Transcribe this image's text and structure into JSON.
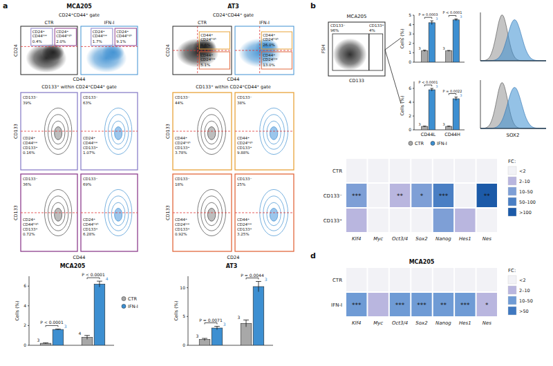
{
  "panel_labels": [
    "a",
    "b",
    "d"
  ],
  "flow_a": [
    {
      "sample": "MCA205",
      "header": "CD24⁺CD44⁺ gate",
      "x_label": "CD44",
      "y_label": "CD24",
      "plots": [
        {
          "condition": "CTR",
          "gates": [
            {
              "label": [
                "CD24⁺",
                "CD44ˡᵒʷ"
              ],
              "percent": "0.4%"
            },
            {
              "label": [
                "CD24⁺",
                "CD44ʰⁱᵍʰ"
              ],
              "percent": "2.0%"
            }
          ]
        },
        {
          "condition": "IFN-I",
          "gates": [
            {
              "label": [
                "CD24⁺",
                "CD44ˡᵒʷ"
              ],
              "percent": "1.7%"
            },
            {
              "label": [
                "CD24⁺",
                "CD44ʰⁱᵍʰ"
              ],
              "percent": "9.1%"
            }
          ]
        }
      ]
    },
    {
      "sample": "AT3",
      "header": "CD24⁺CD44⁺ gate",
      "x_label": "CD44",
      "y_label": "CD24",
      "plots": [
        {
          "condition": "CTR",
          "gates": [
            {
              "label": [
                "CD44⁺",
                "CD24ʰⁱᵍʰ"
              ],
              "percent": "8.6%"
            },
            {
              "label": [
                "CD44⁺",
                "CD24ˡᵒʷ"
              ],
              "percent": "5.1%"
            }
          ]
        },
        {
          "condition": "IFN-I",
          "gates": [
            {
              "label": [
                "CD44⁺",
                "CD24ʰⁱᵍʰ"
              ],
              "percent": "26.0%"
            },
            {
              "label": [
                "CD44⁺",
                "CD24ˡᵒʷ"
              ],
              "percent": "13.0%"
            }
          ]
        }
      ]
    }
  ],
  "contour_a": {
    "top_label": "CD133⁻",
    "y_label": "CD133",
    "blocks": [
      {
        "header": "CD133⁺ within CD24⁺CD44⁺ gate",
        "x_label": "CD44",
        "rows": [
          {
            "gate": [
              "CD24⁺",
              "CD44ˡᵒʷ",
              "CD133⁺"
            ],
            "cells": [
              {
                "top": "39%",
                "bottom": "0.16%"
              },
              {
                "top": "63%",
                "bottom": "1.07%"
              }
            ]
          },
          {
            "gate": [
              "CD24⁺",
              "CD44ʰⁱᵍʰ",
              "CD133⁺"
            ],
            "cells": [
              {
                "top": "36%",
                "bottom": "0.72%"
              },
              {
                "top": "69%",
                "bottom": "6.28%"
              }
            ]
          }
        ]
      },
      {
        "header": "CD133⁺ within CD24⁺CD44⁺ gate",
        "x_label": "CD24",
        "rows": [
          {
            "gate": [
              "CD44⁺",
              "CD24ʰⁱᵍʰ",
              "CD133⁺"
            ],
            "cells": [
              {
                "top": "44%",
                "bottom": "3.78%"
              },
              {
                "top": "38%",
                "bottom": "9.88%"
              }
            ]
          },
          {
            "gate": [
              "CD44⁺",
              "CD24ˡᵒʷ",
              "CD133⁺"
            ],
            "cells": [
              {
                "top": "18%",
                "bottom": "0.92%"
              },
              {
                "top": "25%",
                "bottom": "3.25%"
              }
            ]
          }
        ]
      }
    ]
  },
  "scatter_b": {
    "title": "MCA205",
    "x_label": "CD133",
    "y_label": "FSH",
    "gates": [
      {
        "label": "CD133⁻",
        "percent": "96%"
      },
      {
        "label": "CD133⁺",
        "percent": "4%"
      }
    ]
  },
  "histograms_b": {
    "x_label": "SOX2"
  },
  "chart_data": [
    {
      "type": "bar",
      "title": "MCA205",
      "categories": [
        null,
        null
      ],
      "y_label": "Cells (%)",
      "series": [
        {
          "name": "CTR",
          "color": "#a8a8a8",
          "values": [
            0.2,
            0.8
          ],
          "errors": [
            0.05,
            0.2
          ],
          "n": [
            3,
            4
          ]
        },
        {
          "name": "IFN-I",
          "color": "#3d8fd1",
          "values": [
            1.6,
            6.2
          ],
          "errors": [
            0.05,
            0.3
          ],
          "n": [
            3,
            4
          ]
        }
      ],
      "ylim": [
        0,
        7
      ],
      "yticks": [
        0,
        2,
        4,
        6
      ],
      "p_values": [
        "P < 0.0001",
        "P < 0.0001"
      ],
      "legend": "right"
    },
    {
      "type": "bar",
      "title": "AT3",
      "categories": [
        null,
        null
      ],
      "y_label": "Cells (%)",
      "series": [
        {
          "name": "CTR",
          "color": "#a8a8a8",
          "values": [
            1.0,
            3.8
          ],
          "errors": [
            0.2,
            0.6
          ],
          "n": [
            3,
            3
          ]
        },
        {
          "name": "IFN-I",
          "color": "#3d8fd1",
          "values": [
            3.0,
            10.2
          ],
          "errors": [
            0.3,
            0.9
          ],
          "n": [
            3,
            3
          ]
        }
      ],
      "ylim": [
        0,
        12
      ],
      "yticks": [
        0,
        5,
        10
      ],
      "p_values": [
        "P = 0.0071",
        "P = 0.0044"
      ]
    },
    {
      "type": "bar",
      "categories": [
        null,
        null
      ],
      "y_label": "Cells (%)",
      "series": [
        {
          "name": "CTR",
          "color": "#a8a8a8",
          "values": [
            1.2,
            1.2
          ],
          "errors": [
            0.08,
            0.05
          ],
          "n": [
            3,
            3
          ]
        },
        {
          "name": "IFN-I",
          "color": "#3d8fd1",
          "values": [
            4.2,
            4.5
          ],
          "errors": [
            0.2,
            0.1
          ],
          "n": [
            3,
            3
          ]
        }
      ],
      "ylim": [
        0,
        5
      ],
      "yticks": [
        0,
        1,
        2,
        3,
        4,
        5
      ],
      "p_values": [
        "P = 0.0003",
        "P < 0.0001"
      ]
    },
    {
      "type": "bar",
      "categories": [
        "CD44L",
        "CD44H"
      ],
      "y_label": "Cells (%)",
      "series": [
        {
          "name": "CTR",
          "color": "#a8a8a8",
          "values": [
            0.5,
            0.5
          ],
          "errors": [
            0.05,
            0.05
          ],
          "n": [
            3,
            3
          ]
        },
        {
          "name": "IFN-I",
          "color": "#3d8fd1",
          "values": [
            5.8,
            4.5
          ],
          "errors": [
            0.2,
            0.25
          ],
          "n": [
            3,
            3
          ]
        }
      ],
      "ylim": [
        0,
        7
      ],
      "yticks": [
        0,
        2,
        4,
        6
      ],
      "p_values": [
        "P < 0.0001",
        "P = 0.0022"
      ],
      "legend": "bottom"
    },
    {
      "type": "heatmap",
      "rows": [
        "CTR",
        "CD133⁻",
        "CD133⁺"
      ],
      "columns": [
        "Klf4",
        "Myc",
        "Oct3/4",
        "Sox2",
        "Nanog",
        "Hes1",
        "Nes"
      ],
      "cells": [
        [
          "<2",
          "<2",
          "<2",
          "<2",
          "<2",
          "<2",
          "<2"
        ],
        [
          "10–50",
          "<2",
          "2–10",
          "10–50",
          "50–100",
          "<2",
          ">100"
        ],
        [
          "2–10",
          "<2",
          "<2",
          "<2",
          "10–50",
          "2–10",
          "<2"
        ]
      ],
      "stars": [
        [
          null,
          null,
          null,
          null,
          null,
          null,
          null
        ],
        [
          "***",
          null,
          "**",
          "*",
          "***",
          null,
          "**"
        ],
        [
          null,
          null,
          null,
          null,
          null,
          null,
          null
        ]
      ],
      "legend_title": "FC:",
      "levels": [
        "<2",
        "2–10",
        "10–50",
        "50–100",
        ">100"
      ],
      "level_colors": [
        "#f2f2f6",
        "#b9b6df",
        "#7e9fd6",
        "#4a7fc4",
        "#1c5aa8"
      ]
    },
    {
      "type": "heatmap",
      "title": "MCA205",
      "rows": [
        "CTR",
        "IFN-I"
      ],
      "columns": [
        "Klf4",
        "Myc",
        "Oct3/4",
        "Sox2",
        "Nanog",
        "Hes1",
        "Nes"
      ],
      "cells": [
        [
          "<2",
          "<2",
          "<2",
          "<2",
          "<2",
          "<2",
          "<2"
        ],
        [
          "10–50",
          "2–10",
          "10–50",
          "10–50",
          "10–50",
          "10–50",
          "2–10"
        ]
      ],
      "stars": [
        [
          null,
          null,
          null,
          null,
          null,
          null,
          null
        ],
        [
          "***",
          null,
          "***",
          "***",
          "**",
          "***",
          "*"
        ]
      ],
      "legend_title": "FC:",
      "levels": [
        "<2",
        "2–10",
        "10–50",
        ">50"
      ],
      "level_colors": [
        "#f2f2f6",
        "#b9b6df",
        "#6f9bd5",
        "#3f78c0"
      ]
    }
  ]
}
